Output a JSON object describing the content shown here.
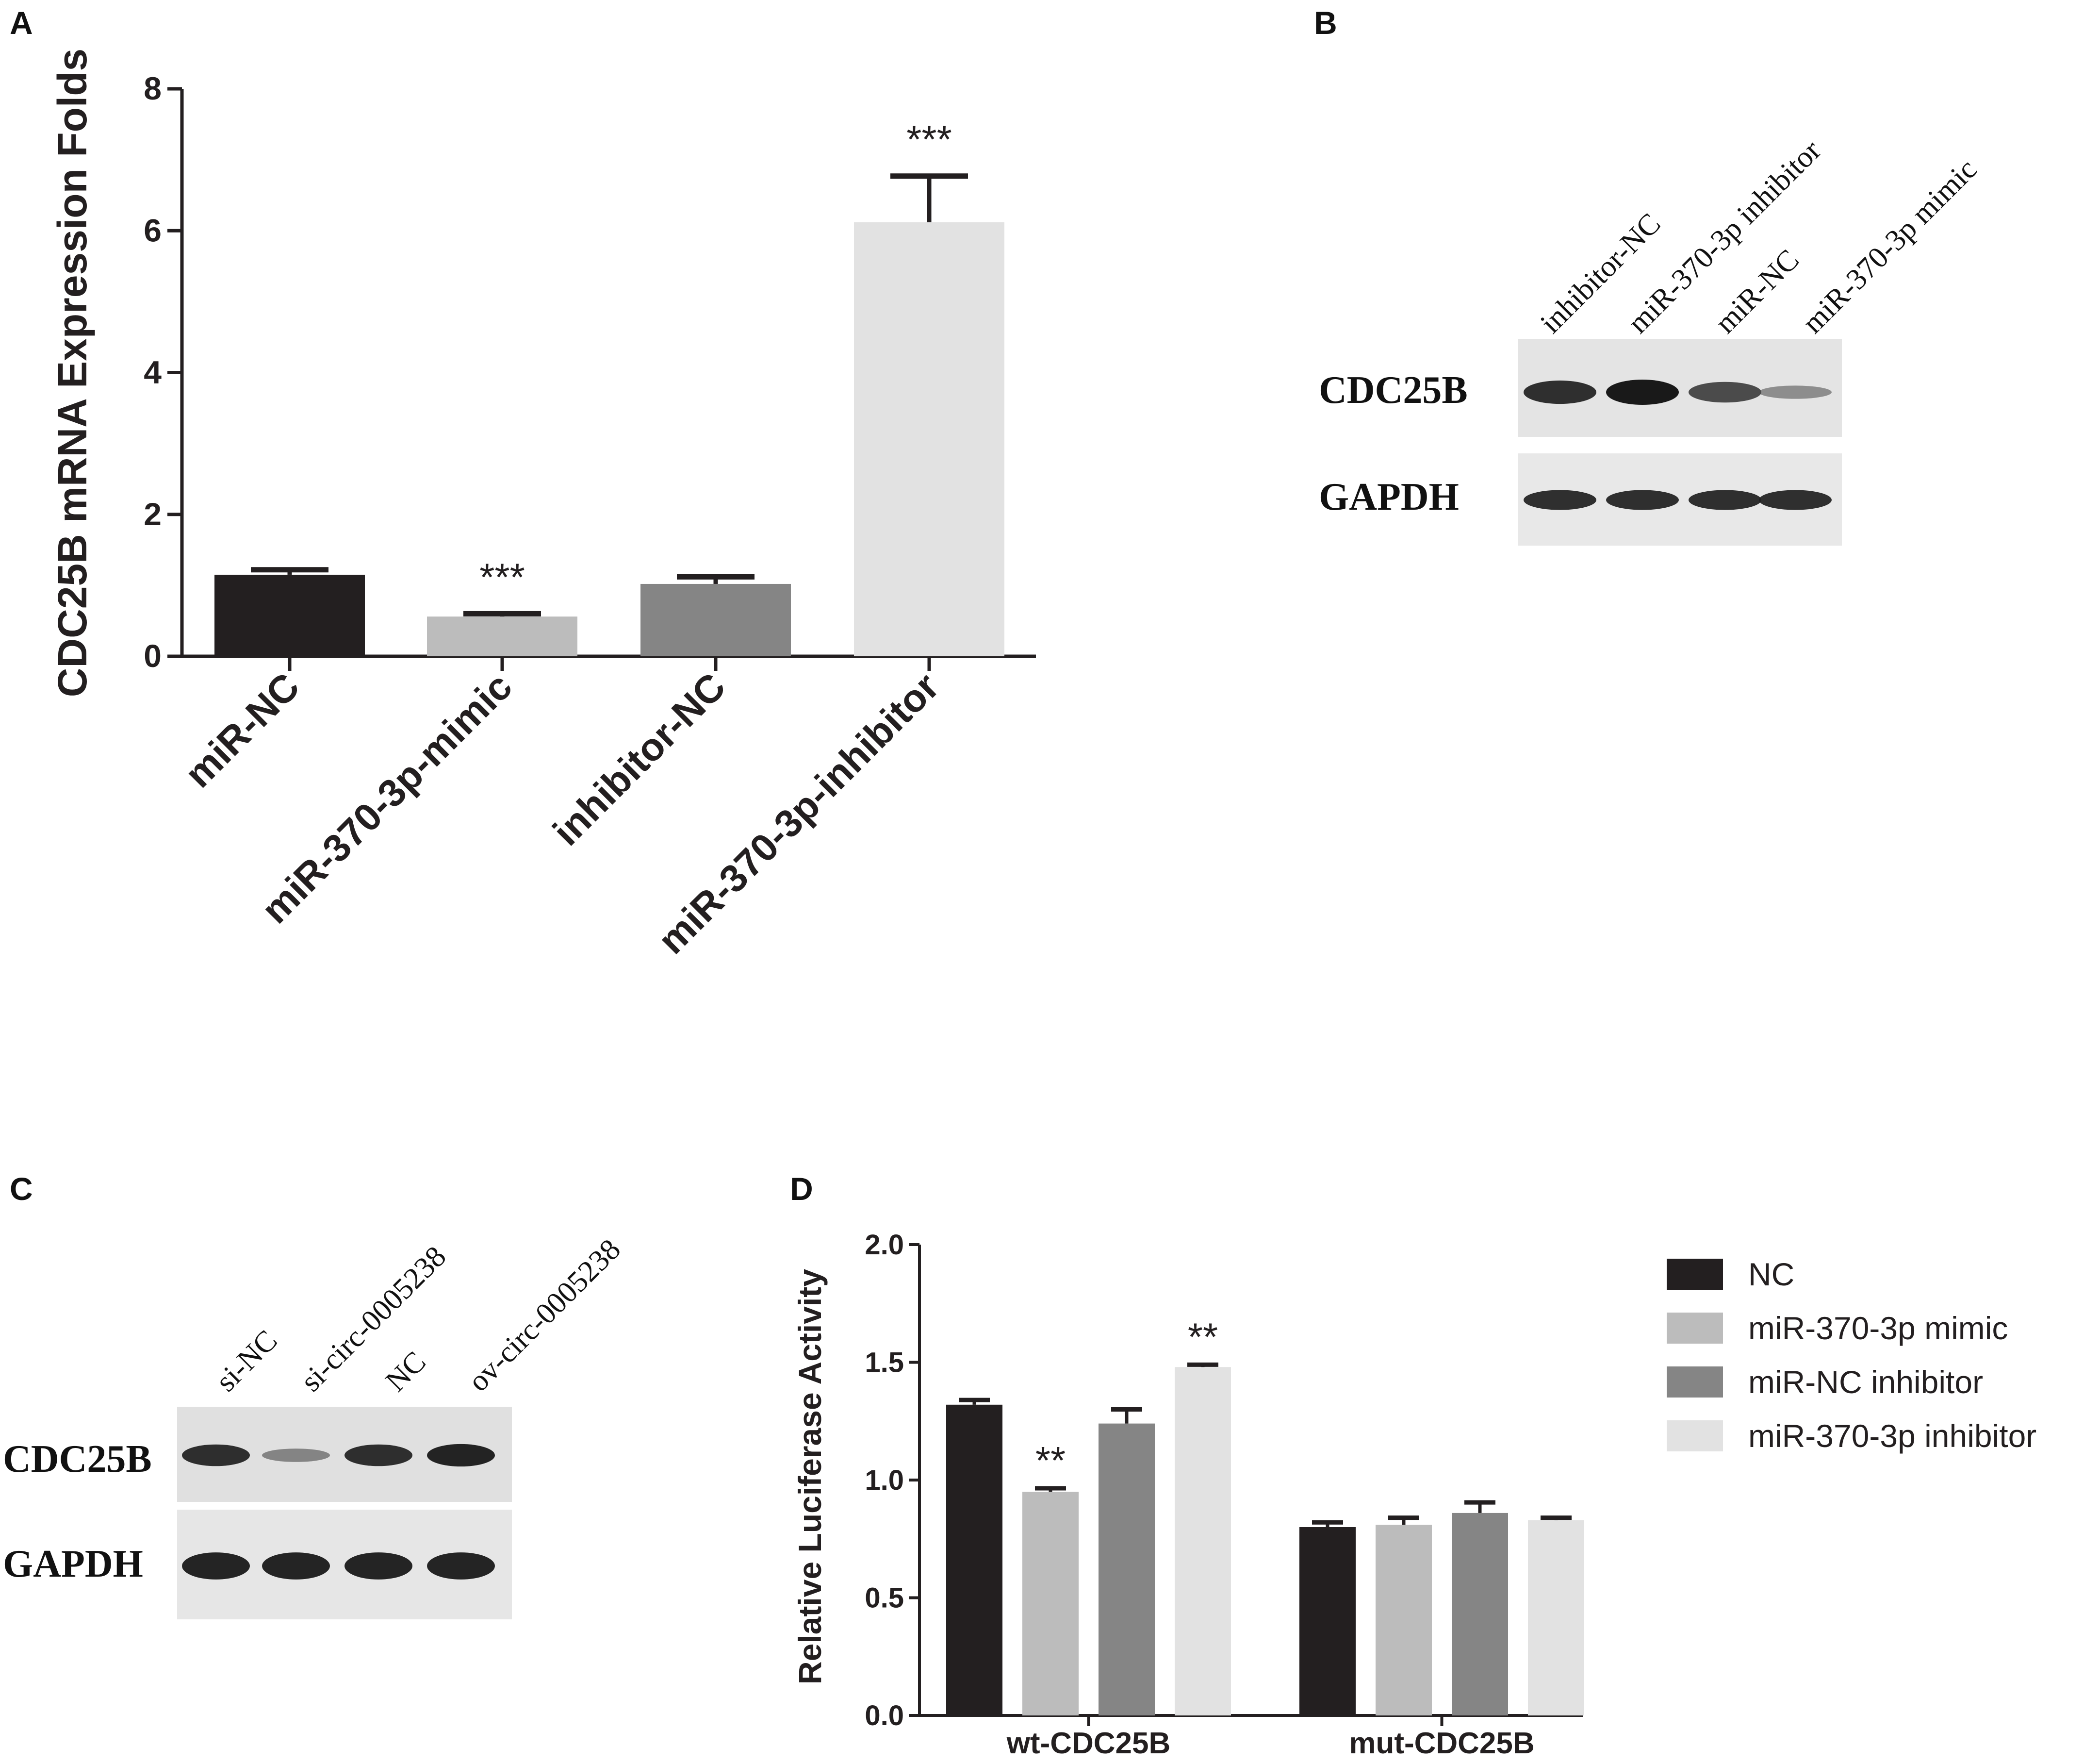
{
  "chart_data": [
    {
      "panel": "A",
      "type": "bar",
      "ylabel": "CDC25B mRNA Expression Folds",
      "ylim": [
        0,
        8
      ],
      "yticks": [
        "0",
        "2",
        "4",
        "6",
        "8"
      ],
      "categories": [
        "miR-NC",
        "miR-370-3p-mimic",
        "inhibitor-NC",
        "miR-370-3p-inhibitor"
      ],
      "values": [
        1.15,
        0.56,
        1.02,
        6.12
      ],
      "errors": [
        0.07,
        0.04,
        0.1,
        0.65
      ],
      "significance": [
        "",
        "***",
        "",
        "***"
      ],
      "colors": [
        "#231f20",
        "#bcbcbc",
        "#858585",
        "#e2e2e2"
      ]
    },
    {
      "panel": "D",
      "type": "bar",
      "ylabel": "Relative Luciferase Activity",
      "ylim": [
        0,
        2.0
      ],
      "yticks": [
        "0.0",
        "0.5",
        "1.0",
        "1.5",
        "2.0"
      ],
      "categories": [
        "wt-CDC25B",
        "mut-CDC25B"
      ],
      "series": [
        {
          "name": "NC",
          "color": "#231f20",
          "values": [
            1.32,
            0.8
          ],
          "errors": [
            0.02,
            0.02
          ],
          "significance": [
            "",
            ""
          ]
        },
        {
          "name": "miR-370-3p mimic",
          "color": "#bcbcbc",
          "values": [
            0.95,
            0.81
          ],
          "errors": [
            0.015,
            0.03
          ],
          "significance": [
            "**",
            ""
          ]
        },
        {
          "name": "miR-NC inhibitor",
          "color": "#858585",
          "values": [
            1.24,
            0.86
          ],
          "errors": [
            0.06,
            0.045
          ],
          "significance": [
            "",
            ""
          ]
        },
        {
          "name": "miR-370-3p inhibitor",
          "color": "#e2e2e2",
          "values": [
            1.48,
            0.83
          ],
          "errors": [
            0.01,
            0.01
          ],
          "significance": [
            "**",
            ""
          ]
        }
      ]
    }
  ],
  "panel_letters": {
    "a": "A",
    "b": "B",
    "c": "C",
    "d": "D"
  },
  "blot_b": {
    "lanes": [
      "inhibitor-NC",
      "miR-370-3p inhibitor",
      "miR-NC",
      "miR-370-3p mimic"
    ],
    "proteins": [
      "CDC25B",
      "GAPDH"
    ],
    "cdc25b_intensity": [
      0.9,
      1.0,
      0.75,
      0.35
    ],
    "gapdh_intensity": [
      0.9,
      0.9,
      0.9,
      0.9
    ]
  },
  "blot_c": {
    "lanes": [
      "si-NC",
      "si-circ-0005238",
      "NC",
      "ov-circ-0005238"
    ],
    "proteins": [
      "CDC25B",
      "GAPDH"
    ],
    "cdc25b_intensity": [
      0.9,
      0.4,
      0.9,
      0.95
    ],
    "gapdh_intensity": [
      0.95,
      0.95,
      0.95,
      0.95
    ]
  }
}
